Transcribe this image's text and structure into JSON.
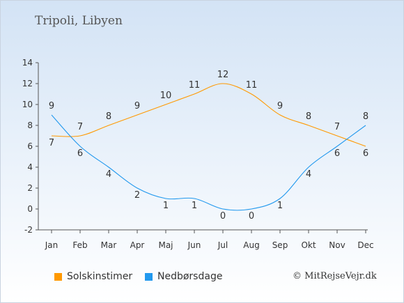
{
  "chart_data": {
    "type": "line",
    "title": "Tripoli, Libyen",
    "categories": [
      "Jan",
      "Feb",
      "Mar",
      "Apr",
      "Maj",
      "Jun",
      "Jul",
      "Aug",
      "Sep",
      "Okt",
      "Nov",
      "Dec"
    ],
    "yticks": [
      "-2",
      "0",
      "2",
      "4",
      "6",
      "8",
      "10",
      "12",
      "14"
    ],
    "ylim": [
      -2,
      14
    ],
    "series": [
      {
        "name": "Solskinstimer",
        "color": "#ff9900",
        "values": [
          7,
          7,
          8,
          9,
          10,
          11,
          12,
          11,
          9,
          8,
          7,
          6
        ]
      },
      {
        "name": "Nedbørsdage",
        "color": "#2299ee",
        "values": [
          9,
          6,
          4,
          2,
          1,
          1,
          0,
          0,
          1,
          4,
          6,
          8
        ]
      }
    ],
    "legend_position": "bottom-left"
  },
  "copyright": "© MitRejseVejr.dk"
}
